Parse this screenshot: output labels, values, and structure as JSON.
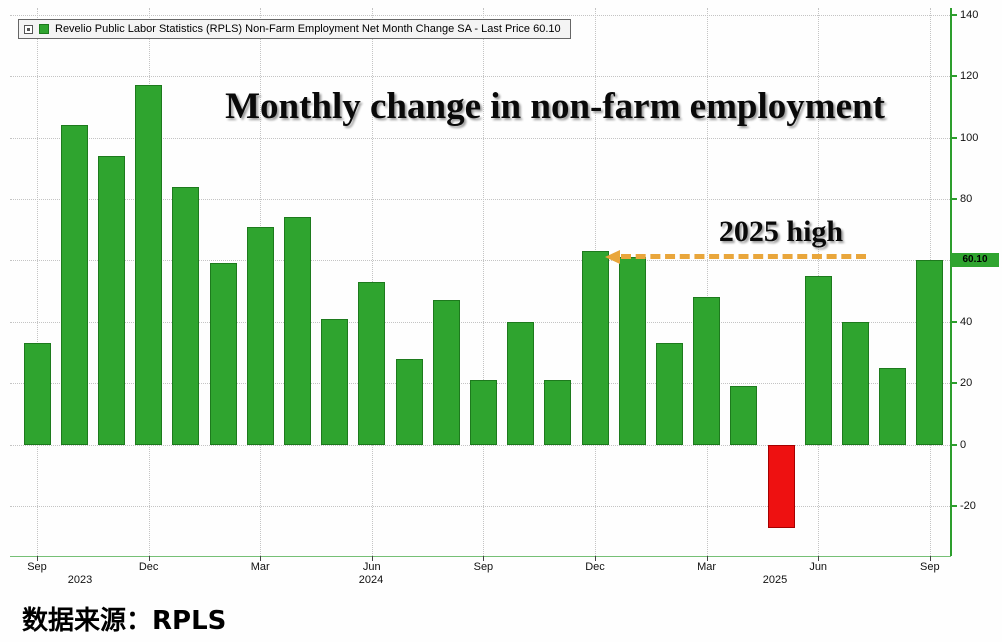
{
  "legend": {
    "text": "Revelio Public Labor Statistics (RPLS) Non-Farm Employment Net Month Change SA - Last Price 60.10",
    "marker_color": "#2fa42f"
  },
  "overlay": {
    "title": "Monthly change in non-farm employment",
    "annotation": "2025 high"
  },
  "y_axis": {
    "ticks": [
      140,
      120,
      100,
      80,
      60,
      40,
      20,
      0,
      -20
    ],
    "last_price_label": "60.10"
  },
  "x_axis": {
    "month_ticks": [
      "Sep",
      "Dec",
      "Mar",
      "Jun",
      "Sep",
      "Dec",
      "Mar",
      "Jun",
      "Sep"
    ],
    "year_labels": [
      "2023",
      "2024",
      "2025"
    ]
  },
  "source_text": "数据来源：RPLS",
  "colors": {
    "positive": "#2fa42f",
    "positive_edge": "#1d7a1d",
    "negative": "#ee1111",
    "negative_edge": "#a50000",
    "axis": "#2d9e2d",
    "grid": "#c4c4c4",
    "arrow": "#e9a63b",
    "badge_bg": "#2fa42f"
  },
  "chart_data": {
    "type": "bar",
    "title": "Monthly change in non-farm employment",
    "series_name": "Revelio Public Labor Statistics (RPLS) Non-Farm Employment Net Month Change SA",
    "categories": [
      "Sep 2023",
      "Oct 2023",
      "Nov 2023",
      "Dec 2023",
      "Jan 2024",
      "Feb 2024",
      "Mar 2024",
      "Apr 2024",
      "May 2024",
      "Jun 2024",
      "Jul 2024",
      "Aug 2024",
      "Sep 2024",
      "Oct 2024",
      "Nov 2024",
      "Dec 2024",
      "Jan 2025",
      "Feb 2025",
      "Mar 2025",
      "Apr 2025",
      "May 2025",
      "Jun 2025",
      "Jul 2025",
      "Aug 2025",
      "Sep 2025"
    ],
    "values": [
      33,
      104,
      94,
      117,
      84,
      59,
      71,
      74,
      41,
      53,
      28,
      47,
      21,
      40,
      21,
      63,
      61,
      33,
      48,
      19,
      -27,
      55,
      40,
      25,
      60.1
    ],
    "last_price": 60.1,
    "xlabel": "",
    "ylabel": "",
    "ylim": [
      -36,
      142
    ],
    "grid": true,
    "legend_position": "top-left",
    "annotation_text": "2025 high"
  }
}
